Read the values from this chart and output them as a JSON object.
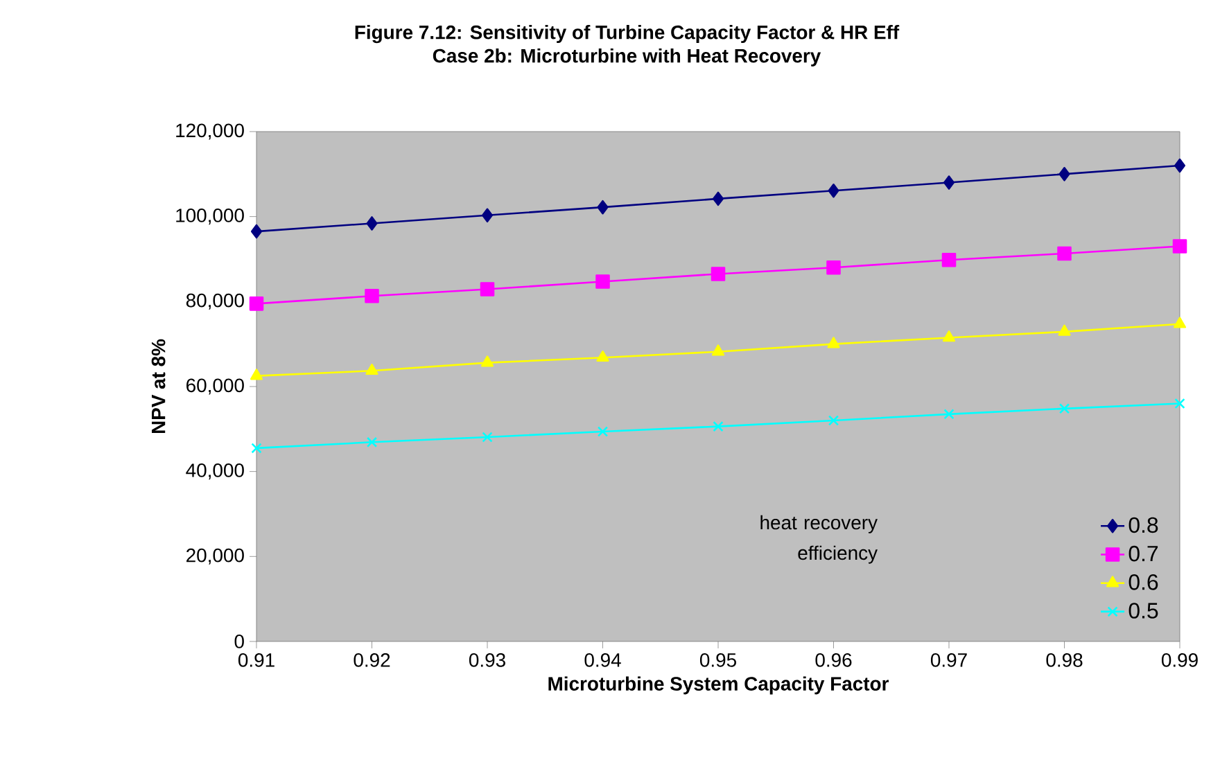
{
  "chart_data": {
    "type": "line",
    "title": "Figure 7.12:  Sensitivity of Turbine Capacity Factor & HR Eff",
    "subtitle": "Case 2b:  Microturbine with Heat Recovery",
    "xlabel": "Microturbine System Capacity Factor",
    "ylabel": "NPV at 8%",
    "legend_title": "heat recovery efficiency",
    "x": [
      0.91,
      0.92,
      0.93,
      0.94,
      0.95,
      0.96,
      0.97,
      0.98,
      0.99
    ],
    "series": [
      {
        "name": "0.8",
        "color": "#000080",
        "marker": "diamond",
        "values": [
          96500,
          98400,
          100300,
          102200,
          104200,
          106100,
          108000,
          110000,
          112000
        ]
      },
      {
        "name": "0.7",
        "color": "#ff00ff",
        "marker": "square",
        "values": [
          79500,
          81300,
          82900,
          84700,
          86500,
          88000,
          89800,
          91300,
          93000
        ]
      },
      {
        "name": "0.6",
        "color": "#ffff00",
        "marker": "triangle",
        "values": [
          62500,
          63700,
          65600,
          66800,
          68200,
          70000,
          71500,
          72900,
          74700
        ]
      },
      {
        "name": "0.5",
        "color": "#00ffff",
        "marker": "cross",
        "values": [
          45500,
          46900,
          48100,
          49400,
          50600,
          52000,
          53500,
          54800,
          56000
        ]
      }
    ],
    "xlim": [
      0.91,
      0.99
    ],
    "xticks": [
      0.91,
      0.92,
      0.93,
      0.94,
      0.95,
      0.96,
      0.97,
      0.98,
      0.99
    ],
    "ylim": [
      0,
      120000
    ],
    "yticks": [
      {
        "value": 0,
        "label": "0"
      },
      {
        "value": 20000,
        "label": "20,000"
      },
      {
        "value": 40000,
        "label": "40,000"
      },
      {
        "value": 60000,
        "label": "60,000"
      },
      {
        "value": 80000,
        "label": "80,000"
      },
      {
        "value": 100000,
        "label": "100,000"
      },
      {
        "value": 120000,
        "label": "120,000"
      }
    ],
    "grid": false,
    "legend": "bottom right",
    "line_style": "solid"
  }
}
